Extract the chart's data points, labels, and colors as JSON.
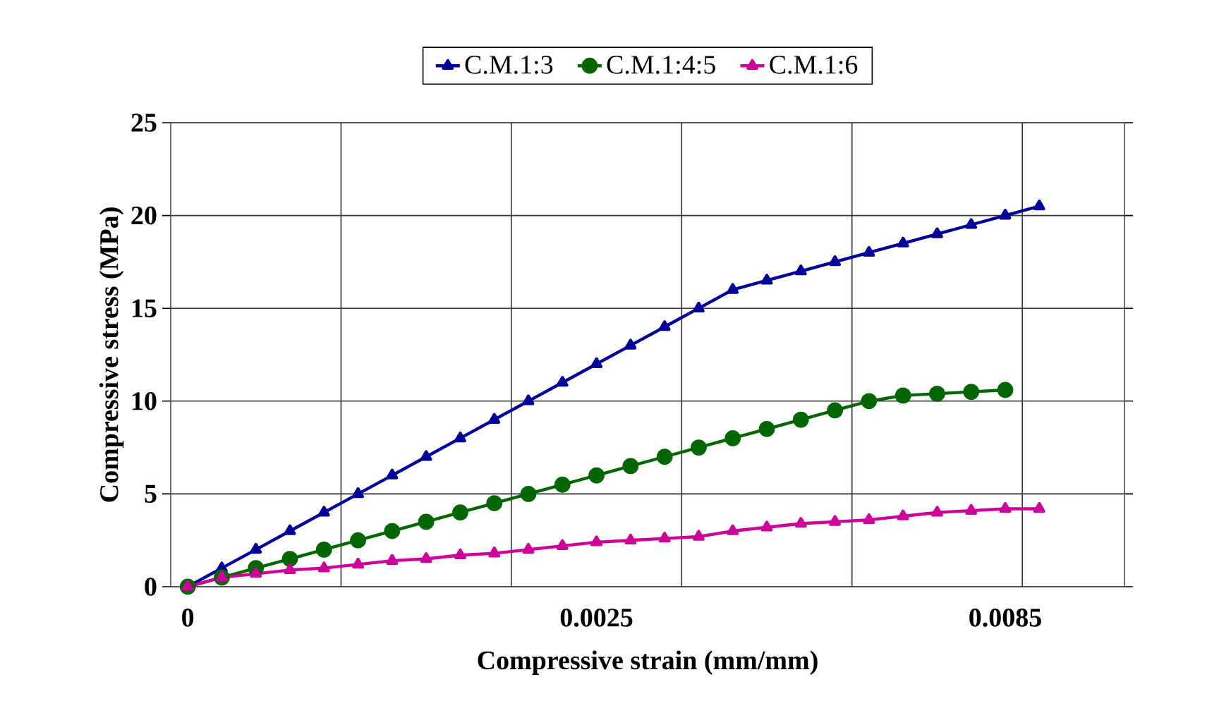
{
  "chart_data": {
    "type": "line",
    "xlabel": "Compressive strain (mm/mm)",
    "ylabel": "Compressive stress (MPa)",
    "categories": [
      "0",
      null,
      null,
      null,
      null,
      null,
      null,
      null,
      null,
      null,
      null,
      null,
      "0.0025",
      null,
      null,
      null,
      null,
      null,
      null,
      null,
      null,
      null,
      null,
      null,
      "0.0085",
      null,
      null,
      null
    ],
    "ylim": [
      0,
      25
    ],
    "yticks": [
      0,
      5,
      10,
      15,
      20,
      25
    ],
    "grid": true,
    "legend": "top",
    "line_style": "solid",
    "series": [
      {
        "name": "C.M.1:3",
        "color": "#000099",
        "marker": "triangle",
        "values": [
          0,
          1,
          2,
          3,
          4,
          5,
          6,
          7,
          8,
          9,
          10,
          11,
          12,
          13,
          14,
          15,
          16,
          16.5,
          17,
          17.5,
          18,
          18.5,
          19,
          19.5,
          20,
          20.5,
          null,
          null
        ]
      },
      {
        "name": "C.M.1:4:5",
        "color": "#006600",
        "marker": "circle",
        "values": [
          0,
          0.5,
          1,
          1.5,
          2,
          2.5,
          3,
          3.5,
          4,
          4.5,
          5,
          5.5,
          6,
          6.5,
          7,
          7.5,
          8,
          8.5,
          9,
          9.5,
          10,
          10.3,
          10.4,
          10.5,
          10.6,
          null,
          null,
          null
        ]
      },
      {
        "name": "C.M.1:6",
        "color": "#cc0099",
        "marker": "triangle",
        "values": [
          0,
          0.5,
          0.7,
          0.9,
          1,
          1.2,
          1.4,
          1.5,
          1.7,
          1.8,
          2,
          2.2,
          2.4,
          2.5,
          2.6,
          2.7,
          3,
          3.2,
          3.4,
          3.5,
          3.6,
          3.8,
          4,
          4.1,
          4.2,
          4.2,
          null,
          null
        ]
      }
    ]
  }
}
